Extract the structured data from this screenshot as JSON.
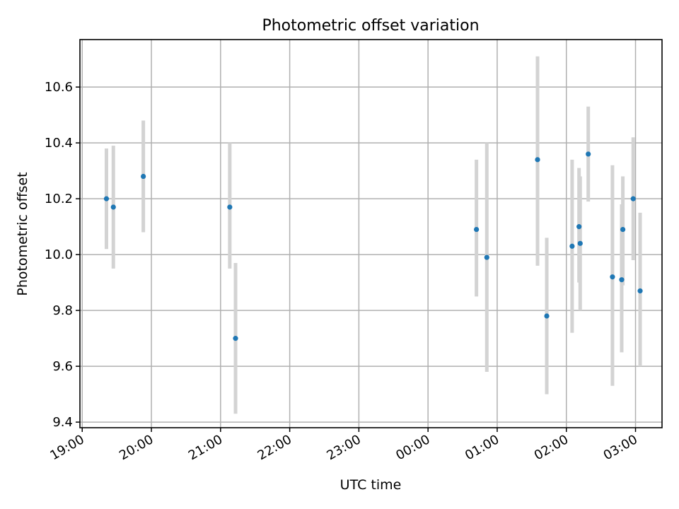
{
  "chart_data": {
    "type": "scatter",
    "title": "Photometric offset variation",
    "xlabel": "UTC time",
    "ylabel": "Photometric offset",
    "grid": true,
    "xaxis_kind": "time",
    "xlim": [
      "19:00",
      "03:23"
    ],
    "ylim": [
      9.38,
      10.77
    ],
    "xticks": [
      {
        "label": "19:00",
        "time": "19:00"
      },
      {
        "label": "20:00",
        "time": "20:00"
      },
      {
        "label": "21:00",
        "time": "21:00"
      },
      {
        "label": "22:00",
        "time": "22:00"
      },
      {
        "label": "23:00",
        "time": "23:00"
      },
      {
        "label": "00:00",
        "time": "00:00"
      },
      {
        "label": "01:00",
        "time": "01:00"
      },
      {
        "label": "02:00",
        "time": "02:00"
      },
      {
        "label": "03:00",
        "time": "03:00"
      }
    ],
    "yticks": [
      {
        "label": "9.4",
        "value": 9.4
      },
      {
        "label": "9.6",
        "value": 9.6
      },
      {
        "label": "9.8",
        "value": 9.8
      },
      {
        "label": "10.0",
        "value": 10.0
      },
      {
        "label": "10.2",
        "value": 10.2
      },
      {
        "label": "10.4",
        "value": 10.4
      },
      {
        "label": "10.6",
        "value": 10.6
      }
    ],
    "colors": {
      "point": "#1f77b4",
      "errorbar": "#d3d3d3",
      "grid": "#b0b0b0"
    },
    "points": [
      {
        "time": "19:21",
        "y": 10.2,
        "low": 10.02,
        "high": 10.38
      },
      {
        "time": "19:27",
        "y": 10.17,
        "low": 9.95,
        "high": 10.39
      },
      {
        "time": "19:53",
        "y": 10.28,
        "low": 10.08,
        "high": 10.48
      },
      {
        "time": "21:08",
        "y": 10.17,
        "low": 9.95,
        "high": 10.4
      },
      {
        "time": "21:13",
        "y": 9.7,
        "low": 9.43,
        "high": 9.97
      },
      {
        "time": "00:42",
        "y": 10.09,
        "low": 9.85,
        "high": 10.34
      },
      {
        "time": "00:51",
        "y": 9.99,
        "low": 9.58,
        "high": 10.4
      },
      {
        "time": "01:35",
        "y": 10.34,
        "low": 9.96,
        "high": 10.71
      },
      {
        "time": "01:43",
        "y": 9.78,
        "low": 9.5,
        "high": 10.06
      },
      {
        "time": "02:05",
        "y": 10.03,
        "low": 9.72,
        "high": 10.34
      },
      {
        "time": "02:11",
        "y": 10.1,
        "low": 9.9,
        "high": 10.31
      },
      {
        "time": "02:12",
        "y": 10.04,
        "low": 9.8,
        "high": 10.28
      },
      {
        "time": "02:19",
        "y": 10.36,
        "low": 10.19,
        "high": 10.53
      },
      {
        "time": "02:40",
        "y": 9.92,
        "low": 9.53,
        "high": 10.32
      },
      {
        "time": "02:48",
        "y": 9.91,
        "low": 9.65,
        "high": 10.18
      },
      {
        "time": "02:49",
        "y": 10.09,
        "low": 9.89,
        "high": 10.28
      },
      {
        "time": "02:58",
        "y": 10.2,
        "low": 9.98,
        "high": 10.42
      },
      {
        "time": "03:04",
        "y": 9.87,
        "low": 9.6,
        "high": 10.15
      }
    ]
  }
}
